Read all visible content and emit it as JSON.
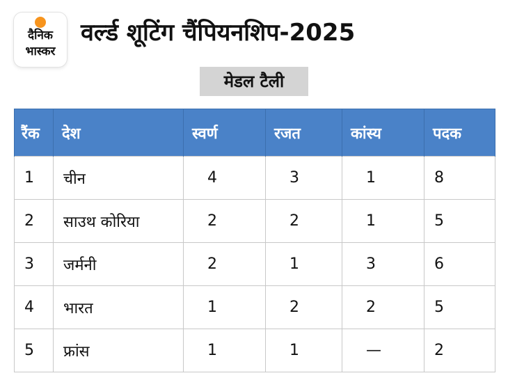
{
  "logo": {
    "line1": "दैनिक",
    "line2": "भास्कर",
    "sun_color": "#f7941d"
  },
  "title": "वर्ल्ड शूटिंग चैंपियनशिप-2025",
  "subtitle": "मेडल टैली",
  "table": {
    "header_color": "#4a82c8",
    "headers": {
      "rank": "रैंक",
      "country": "देश",
      "gold": "स्वर्ण",
      "silver": "रजत",
      "bronze": "कांस्य",
      "total": "पदक"
    },
    "rows": [
      {
        "rank": "1",
        "country": "चीन",
        "gold": "4",
        "silver": "3",
        "bronze": "1",
        "total": "8"
      },
      {
        "rank": "2",
        "country": "साउथ कोरिया",
        "gold": "2",
        "silver": "2",
        "bronze": "1",
        "total": "5"
      },
      {
        "rank": "3",
        "country": "जर्मनी",
        "gold": "2",
        "silver": "1",
        "bronze": "3",
        "total": "6"
      },
      {
        "rank": "4",
        "country": "भारत",
        "gold": "1",
        "silver": "2",
        "bronze": "2",
        "total": "5"
      },
      {
        "rank": "5",
        "country": "फ्रांस",
        "gold": "1",
        "silver": "1",
        "bronze": "—",
        "total": "2"
      }
    ]
  }
}
